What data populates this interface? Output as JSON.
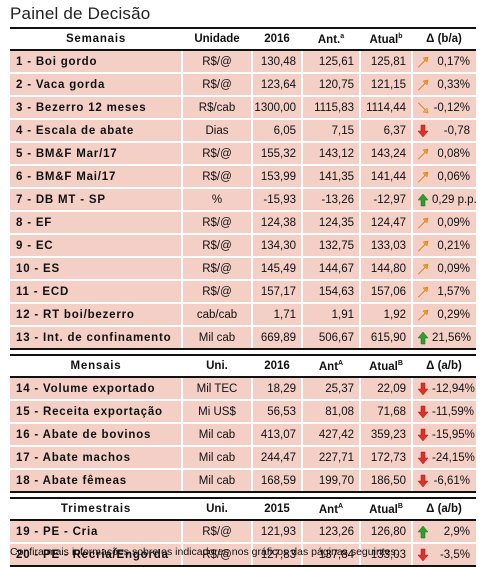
{
  "title": "Painel de Decisão",
  "colors": {
    "row_bg": "#f3cfc6",
    "up_orange": "#f5a623",
    "down_red": "#e0302a",
    "up_green": "#2e9e2e"
  },
  "sections": [
    {
      "header": {
        "name": "Semanais",
        "unit": "Unidade",
        "y": "2016",
        "ant": "Ant.",
        "ant_sup": "a",
        "atual": "Atual",
        "atual_sup": "b",
        "delta": "Δ (b/a)"
      },
      "rows": [
        {
          "name": "1 - Boi gordo",
          "unit": "R$/@",
          "y": "130,48",
          "ant": "125,61",
          "atual": "125,81",
          "icon": "up-orange-arrow-icon",
          "delta": "0,17%"
        },
        {
          "name": "2 - Vaca gorda",
          "unit": "R$/@",
          "y": "123,64",
          "ant": "120,75",
          "atual": "121,15",
          "icon": "up-orange-arrow-icon",
          "delta": "0,33%"
        },
        {
          "name": "3 - Bezerro 12 meses",
          "unit": "R$/cab",
          "y": "1300,00",
          "ant": "1115,83",
          "atual": "1114,44",
          "icon": "down-orange-arrow-icon",
          "delta": "-0,12%"
        },
        {
          "name": "4 - Escala de abate",
          "unit": "Dias",
          "y": "6,05",
          "ant": "7,15",
          "atual": "6,37",
          "icon": "down-red-arrow-icon",
          "delta": "-0,78"
        },
        {
          "name": "5 - BM&F Mar/17",
          "unit": "R$/@",
          "y": "155,32",
          "ant": "143,12",
          "atual": "143,24",
          "icon": "up-orange-arrow-icon",
          "delta": "0,08%"
        },
        {
          "name": "6 - BM&F Mai/17",
          "unit": "R$/@",
          "y": "153,99",
          "ant": "141,35",
          "atual": "141,44",
          "icon": "up-orange-arrow-icon",
          "delta": "0,06%"
        },
        {
          "name": "7 - DB MT - SP",
          "unit": "%",
          "y": "-15,93",
          "ant": "-13,26",
          "atual": "-12,97",
          "icon": "up-green-arrow-icon",
          "delta": "0,29 p.p."
        },
        {
          "name": "8 - EF",
          "unit": "R$/@",
          "y": "124,38",
          "ant": "124,35",
          "atual": "124,47",
          "icon": "up-orange-arrow-icon",
          "delta": "0,09%"
        },
        {
          "name": "9 - EC",
          "unit": "R$/@",
          "y": "134,30",
          "ant": "132,75",
          "atual": "133,03",
          "icon": "up-orange-arrow-icon",
          "delta": "0,21%"
        },
        {
          "name": "10 - ES",
          "unit": "R$/@",
          "y": "145,49",
          "ant": "144,67",
          "atual": "144,80",
          "icon": "up-orange-arrow-icon",
          "delta": "0,09%"
        },
        {
          "name": "11 - ECD",
          "unit": "R$/@",
          "y": "157,17",
          "ant": "154,63",
          "atual": "157,06",
          "icon": "up-orange-arrow-icon",
          "delta": "1,57%"
        },
        {
          "name": "12 - RT boi/bezerro",
          "unit": "cab/cab",
          "y": "1,71",
          "ant": "1,91",
          "atual": "1,92",
          "icon": "up-orange-arrow-icon",
          "delta": "0,29%"
        },
        {
          "name": "13 - Int. de confinamento",
          "unit": "Mil cab",
          "y": "669,89",
          "ant": "506,67",
          "atual": "615,90",
          "icon": "up-green-arrow-icon",
          "delta": "21,56%"
        }
      ]
    },
    {
      "header": {
        "name": "Mensais",
        "unit": "Uni.",
        "y": "2016",
        "ant": "Ant",
        "ant_sup": "A",
        "atual": "Atual",
        "atual_sup": "B",
        "delta": "Δ (a/b)"
      },
      "rows": [
        {
          "name": "14 - Volume exportado",
          "unit": "Mil TEC",
          "y": "18,29",
          "ant": "25,37",
          "atual": "22,09",
          "icon": "down-red-arrow-icon",
          "delta": "-12,94%"
        },
        {
          "name": "15 - Receita exportação",
          "unit": "Mi US$",
          "y": "56,53",
          "ant": "81,08",
          "atual": "71,68",
          "icon": "down-red-arrow-icon",
          "delta": "-11,59%"
        },
        {
          "name": "16 - Abate de bovinos",
          "unit": "Mil cab",
          "y": "413,07",
          "ant": "427,42",
          "atual": "359,23",
          "icon": "down-red-arrow-icon",
          "delta": "-15,95%"
        },
        {
          "name": "17 - Abate machos",
          "unit": "Mil cab",
          "y": "244,47",
          "ant": "227,71",
          "atual": "172,73",
          "icon": "down-red-arrow-icon",
          "delta": "-24,15%"
        },
        {
          "name": "18 - Abate fêmeas",
          "unit": "Mil cab",
          "y": "168,59",
          "ant": "199,70",
          "atual": "186,50",
          "icon": "down-red-arrow-icon",
          "delta": "-6,61%"
        }
      ]
    },
    {
      "header": {
        "name": "Trimestrais",
        "unit": "Uni.",
        "y": "2015",
        "ant": "Ant",
        "ant_sup": "A",
        "atual": "Atual",
        "atual_sup": "B",
        "delta": "Δ (a/b)"
      },
      "rows": [
        {
          "name": "19 - PE - Cria",
          "unit": "R$/@",
          "y": "121,93",
          "ant": "123,26",
          "atual": "126,80",
          "icon": "up-green-arrow-icon",
          "delta": "2,9%"
        },
        {
          "name": "20 - PE - Recria/Engorda",
          "unit": "R$/@",
          "y": "127,83",
          "ant": "137,84",
          "atual": "133,03",
          "icon": "down-red-arrow-icon",
          "delta": "-3,5%"
        }
      ]
    }
  ],
  "footer": "Confira mais informações sobre os indicadores nos gráficos das páginas seguintes."
}
